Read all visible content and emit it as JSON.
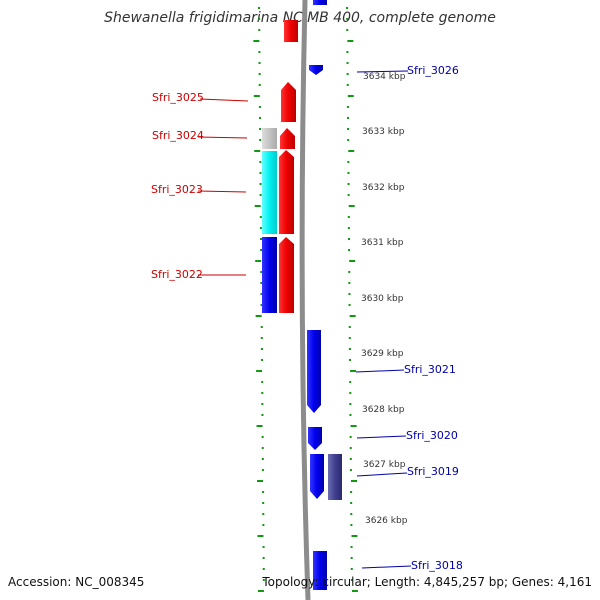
{
  "title": "Shewanella frigidimarina NCIMB 400, complete genome",
  "footer": {
    "accession": "Accession: NC_008345",
    "topology": "Topology: circular; Length: 4,845,257 bp; Genes: 4,161"
  },
  "kbp_ticks": [
    "3634 kbp",
    "3633 kbp",
    "3632 kbp",
    "3631 kbp",
    "3630 kbp",
    "3629 kbp",
    "3628 kbp",
    "3627 kbp",
    "3626 kbp"
  ],
  "genes_left": [
    "Sfri_3025",
    "Sfri_3024",
    "Sfri_3023",
    "Sfri_3022"
  ],
  "genes_right": [
    "Sfri_3026",
    "Sfri_3021",
    "Sfri_3020",
    "Sfri_3019",
    "Sfri_3018"
  ],
  "colors": {
    "forward_strand": "#ff0000",
    "reverse_strand": "#0000ff",
    "cds_cyan": "#00ffff",
    "cds_grey": "#bbbbbb",
    "cds_slate": "#3f3f8f",
    "backbone": "#888888",
    "ticks": "#119911"
  }
}
